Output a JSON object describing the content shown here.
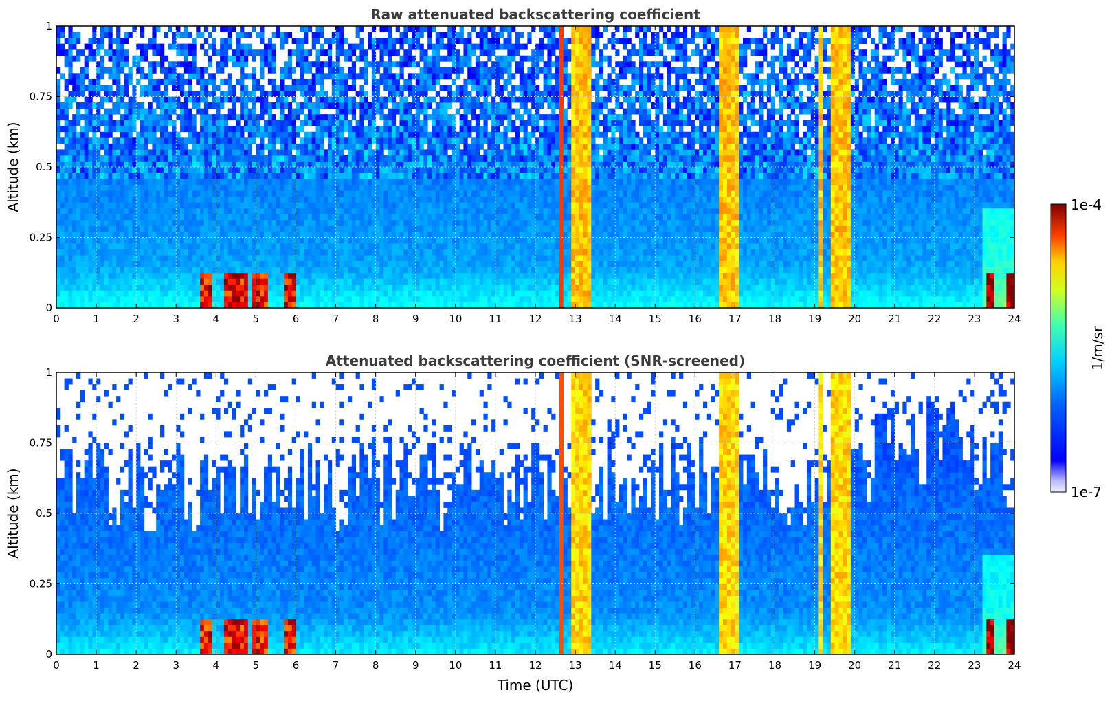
{
  "chart_data": [
    {
      "type": "heatmap",
      "title": "Raw attenuated backscattering coefficient",
      "xlabel": "",
      "ylabel": "Altitude (km)",
      "xlim": [
        0,
        24
      ],
      "ylim": [
        0,
        1
      ],
      "xticks": [
        "0",
        "1",
        "2",
        "3",
        "4",
        "5",
        "6",
        "7",
        "8",
        "9",
        "10",
        "11",
        "12",
        "13",
        "14",
        "15",
        "16",
        "17",
        "18",
        "19",
        "20",
        "21",
        "22",
        "23",
        "24"
      ],
      "yticks": [
        "0",
        "0.25",
        "0.5",
        "0.75",
        "1"
      ],
      "grid": true,
      "screened": false,
      "features": {
        "noise_above_km": 0.55,
        "surface_layer_top_km": 0.15,
        "strong_columns_utc": [
          [
            12.6,
            12.75
          ],
          [
            12.95,
            13.4
          ],
          [
            16.65,
            17.15
          ],
          [
            19.1,
            19.2
          ],
          [
            19.4,
            19.85
          ]
        ],
        "aerosol_hotspots_utc": [
          [
            3.6,
            3.9
          ],
          [
            4.2,
            4.8
          ],
          [
            4.9,
            5.3
          ],
          [
            5.7,
            6.0
          ],
          [
            23.3,
            23.5
          ],
          [
            23.8,
            24.0
          ]
        ]
      }
    },
    {
      "type": "heatmap",
      "title": "Attenuated backscattering coefficient (SNR-screened)",
      "xlabel": "Time (UTC)",
      "ylabel": "Altitude (km)",
      "xlim": [
        0,
        24
      ],
      "ylim": [
        0,
        1
      ],
      "xticks": [
        "0",
        "1",
        "2",
        "3",
        "4",
        "5",
        "6",
        "7",
        "8",
        "9",
        "10",
        "11",
        "12",
        "13",
        "14",
        "15",
        "16",
        "17",
        "18",
        "19",
        "20",
        "21",
        "22",
        "23",
        "24"
      ],
      "yticks": [
        "0",
        "0.25",
        "0.5",
        "0.75",
        "1"
      ],
      "grid": true,
      "screened": true,
      "features": {
        "screened_above_km_typical": 0.6,
        "strong_columns_utc": [
          [
            12.6,
            12.75
          ],
          [
            12.95,
            13.4
          ],
          [
            16.65,
            17.15
          ],
          [
            19.1,
            19.2
          ],
          [
            19.4,
            19.85
          ]
        ],
        "aerosol_hotspots_utc": [
          [
            3.6,
            3.9
          ],
          [
            4.2,
            4.8
          ],
          [
            4.9,
            5.3
          ],
          [
            5.7,
            6.0
          ],
          [
            23.3,
            23.5
          ],
          [
            23.8,
            24.0
          ]
        ]
      }
    }
  ],
  "colorbar": {
    "label": "1/m/sr",
    "max_label": "1e-4",
    "min_label": "1e-7",
    "scale": "log",
    "range": [
      1e-07,
      0.0001
    ],
    "colormap": "jet"
  }
}
